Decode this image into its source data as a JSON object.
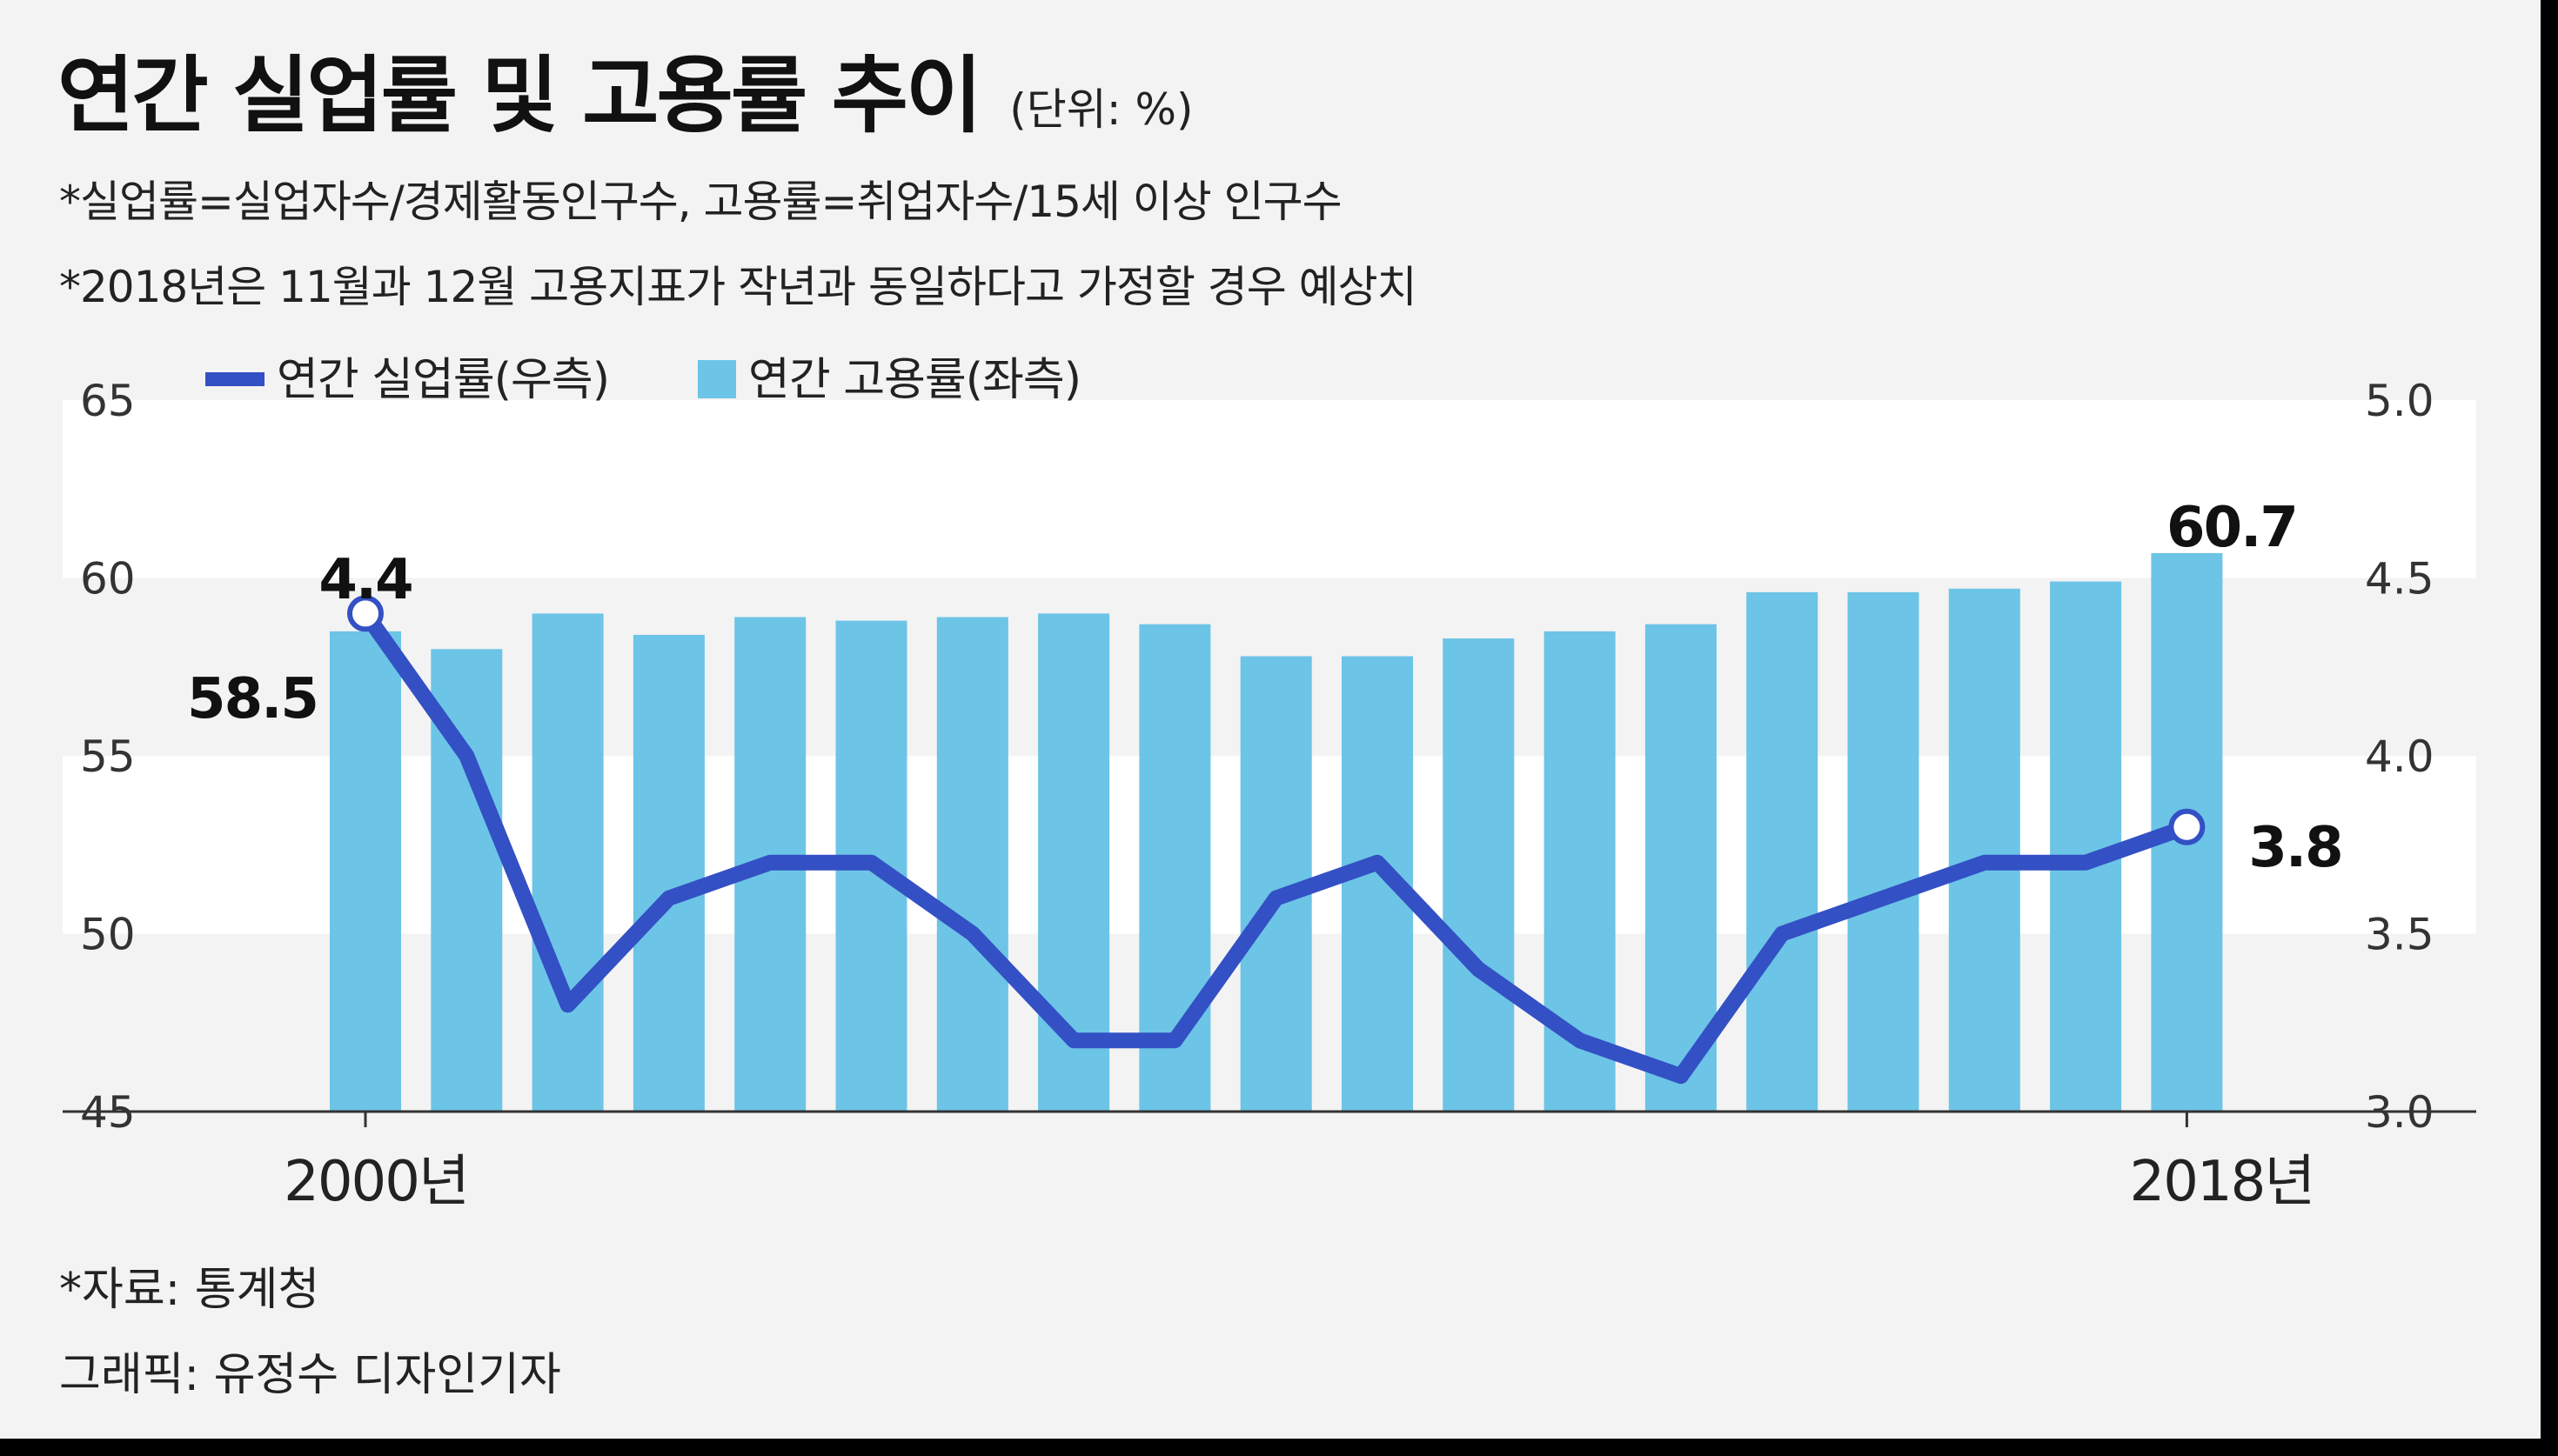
{
  "header": {
    "title": "연간 실업률 및 고용률 추이",
    "unit": "(단위: %)",
    "note1": "*실업률=실업자수/경제활동인구수, 고용률=취업자수/15세 이상 인구수",
    "note2": "*2018년은 11월과 12월 고용지표가 작년과 동일하다고 가정할 경우 예상치"
  },
  "footer": {
    "source": "*자료: 통계청",
    "credit": "그래픽: 유정수 디자인기자"
  },
  "colors": {
    "bar": "#6cc4e6",
    "line": "#3350c4",
    "band": "#ffffff",
    "background": "#f3f3f3"
  },
  "chart_data": {
    "type": "bar+line",
    "x_start_label": "2000년",
    "x_end_label": "2018년",
    "categories": [
      "2000",
      "2001",
      "2002",
      "2003",
      "2004",
      "2005",
      "2006",
      "2007",
      "2008",
      "2009",
      "2010",
      "2011",
      "2012",
      "2013",
      "2014",
      "2015",
      "2016",
      "2017",
      "2018"
    ],
    "series": [
      {
        "name": "연간 고용률(좌측)",
        "type": "bar",
        "axis": "left",
        "values": [
          58.5,
          58.0,
          59.0,
          58.4,
          58.9,
          58.8,
          58.9,
          59.0,
          58.7,
          57.8,
          57.8,
          58.3,
          58.5,
          58.7,
          59.6,
          59.6,
          59.7,
          59.9,
          60.7
        ]
      },
      {
        "name": "연간 실업률(우측)",
        "type": "line",
        "axis": "right",
        "values": [
          4.4,
          4.0,
          3.3,
          3.6,
          3.7,
          3.7,
          3.5,
          3.2,
          3.2,
          3.6,
          3.7,
          3.4,
          3.2,
          3.1,
          3.5,
          3.6,
          3.7,
          3.7,
          3.8
        ]
      }
    ],
    "y_left": {
      "min": 45,
      "max": 65,
      "ticks": [
        "65",
        "60",
        "55",
        "50",
        "45"
      ]
    },
    "y_right": {
      "min": 3.0,
      "max": 5.0,
      "ticks": [
        "5.0",
        "4.5",
        "4.0",
        "3.5",
        "3.0"
      ]
    },
    "data_labels": {
      "bar_first": "58.5",
      "bar_last": "60.7",
      "line_first": "4.4",
      "line_last": "3.8"
    },
    "legend": [
      "연간 실업률(우측)",
      "연간 고용률(좌측)"
    ],
    "legend_position": "top-left"
  }
}
